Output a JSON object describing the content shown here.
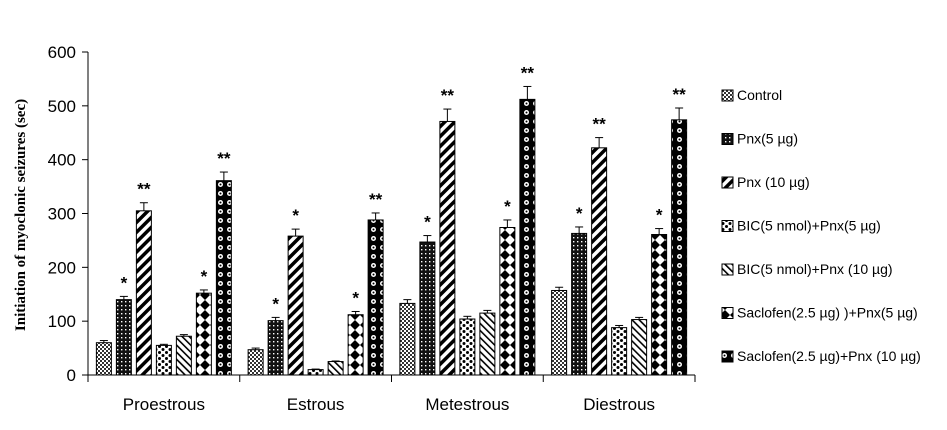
{
  "chart_data": {
    "type": "bar",
    "ylabel": "Initiation of myoclonic seizures (sec)",
    "xlabel": "",
    "ylim": [
      0,
      600
    ],
    "yticks": [
      "0",
      "100",
      "200",
      "300",
      "400",
      "500",
      "600"
    ],
    "grid": false,
    "legend": "right",
    "categories": [
      "Proestrous",
      "Estrous",
      "Metestrous",
      "Diestrous"
    ],
    "series": [
      {
        "name": "Control",
        "pattern": "checker",
        "values": [
          60,
          47,
          133,
          157
        ],
        "errors": [
          4,
          3,
          7,
          6
        ],
        "sig": [
          "",
          "",
          "",
          ""
        ]
      },
      {
        "name": "Pnx(5 µg)",
        "pattern": "dots-dark",
        "values": [
          140,
          101,
          247,
          263
        ],
        "errors": [
          6,
          6,
          12,
          12
        ],
        "sig": [
          "*",
          "*",
          "*",
          "*"
        ]
      },
      {
        "name": "Pnx (10 µg)",
        "pattern": "diag-bold",
        "values": [
          305,
          258,
          471,
          422
        ],
        "errors": [
          15,
          13,
          23,
          19
        ],
        "sig": [
          "**",
          "*",
          "**",
          "**"
        ]
      },
      {
        "name": "BIC(5 nmol)+Pnx(5 µg)",
        "pattern": "bricks",
        "values": [
          55,
          10,
          104,
          88
        ],
        "errors": [
          2,
          1,
          5,
          4
        ],
        "sig": [
          "",
          "",
          "",
          ""
        ]
      },
      {
        "name": "BIC(5 nmol)+Pnx (10 µg)",
        "pattern": "diag-thin",
        "values": [
          72,
          25,
          115,
          103
        ],
        "errors": [
          3,
          1,
          5,
          4
        ],
        "sig": [
          "",
          "",
          "",
          ""
        ]
      },
      {
        "name": "Saclofen(2.5 µg) )+Pnx(5 µg)",
        "pattern": "diamonds",
        "values": [
          152,
          112,
          274,
          261
        ],
        "errors": [
          6,
          6,
          14,
          11
        ],
        "sig": [
          "*",
          "*",
          "*",
          "*"
        ]
      },
      {
        "name": "Saclofen(2.5 µg)+Pnx (10 µg)",
        "pattern": "circles",
        "values": [
          361,
          288,
          512,
          474
        ],
        "errors": [
          16,
          13,
          24,
          22
        ],
        "sig": [
          "**",
          "**",
          "**",
          "**"
        ]
      }
    ]
  }
}
